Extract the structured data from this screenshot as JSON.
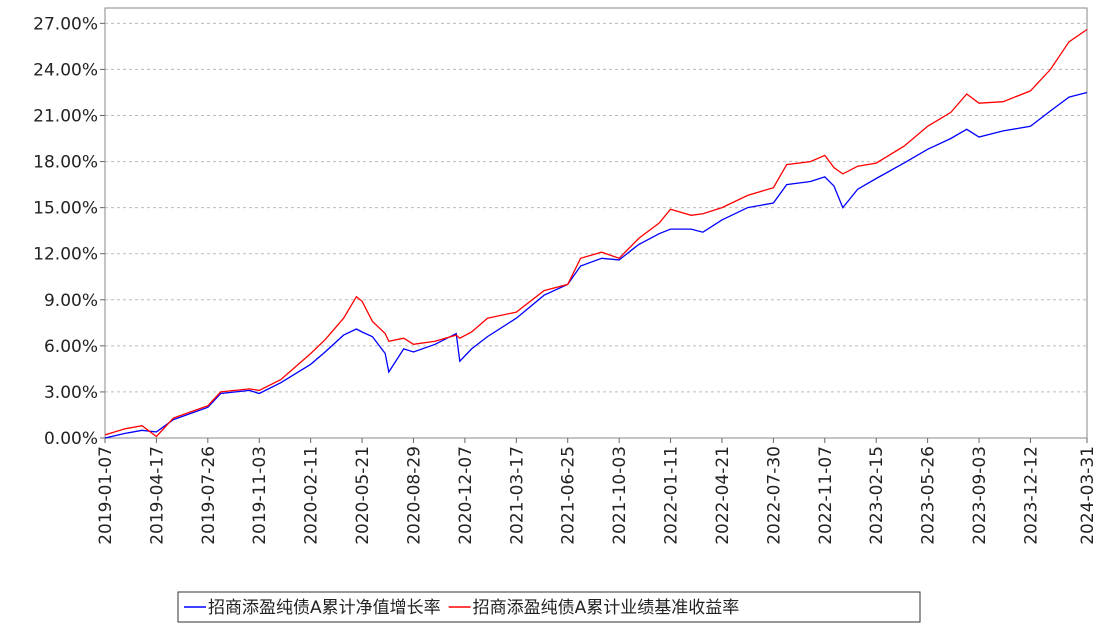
{
  "chart_data": {
    "type": "line",
    "x": [
      "2019-01-07",
      "2019-02-15",
      "2019-03-20",
      "2019-04-17",
      "2019-05-20",
      "2019-07-26",
      "2019-08-20",
      "2019-10-15",
      "2019-11-03",
      "2019-12-15",
      "2020-02-11",
      "2020-03-10",
      "2020-04-15",
      "2020-05-10",
      "2020-05-21",
      "2020-06-10",
      "2020-07-05",
      "2020-07-12",
      "2020-08-10",
      "2020-08-29",
      "2020-10-10",
      "2020-11-20",
      "2020-11-27",
      "2020-12-20",
      "2021-01-20",
      "2021-03-17",
      "2021-05-10",
      "2021-06-25",
      "2021-07-20",
      "2021-08-30",
      "2021-10-03",
      "2021-11-10",
      "2021-12-20",
      "2022-01-11",
      "2022-02-20",
      "2022-03-15",
      "2022-04-21",
      "2022-06-10",
      "2022-07-30",
      "2022-08-25",
      "2022-10-10",
      "2022-11-07",
      "2022-11-25",
      "2022-12-12",
      "2023-01-10",
      "2023-02-15",
      "2023-04-10",
      "2023-05-26",
      "2023-07-10",
      "2023-08-10",
      "2023-09-03",
      "2023-10-20",
      "2023-12-12",
      "2024-01-20",
      "2024-02-25",
      "2024-03-31"
    ],
    "series": [
      {
        "name": "招商添盈纯债A累计净值增长率",
        "color": "#0000ff",
        "values": [
          0.0,
          0.3,
          0.5,
          0.4,
          1.2,
          2.0,
          2.9,
          3.1,
          2.9,
          3.6,
          4.8,
          5.6,
          6.7,
          7.1,
          6.9,
          6.6,
          5.5,
          4.3,
          5.8,
          5.6,
          6.1,
          6.8,
          5.0,
          5.8,
          6.6,
          7.8,
          9.3,
          10.0,
          11.2,
          11.7,
          11.6,
          12.6,
          13.3,
          13.6,
          13.6,
          13.4,
          14.2,
          15.0,
          15.3,
          16.5,
          16.7,
          17.0,
          16.4,
          15.0,
          16.2,
          16.9,
          17.9,
          18.8,
          19.5,
          20.1,
          19.6,
          20.0,
          20.3,
          21.3,
          22.2,
          22.5
        ]
      },
      {
        "name": "招商添盈纯债A累计业绩基准收益率",
        "color": "#ff0000",
        "values": [
          0.2,
          0.6,
          0.8,
          0.1,
          1.3,
          2.1,
          3.0,
          3.2,
          3.1,
          3.8,
          5.5,
          6.4,
          7.8,
          9.2,
          8.9,
          7.6,
          6.8,
          6.3,
          6.5,
          6.1,
          6.3,
          6.7,
          6.5,
          6.9,
          7.8,
          8.2,
          9.6,
          10.0,
          11.7,
          12.1,
          11.7,
          13.0,
          14.0,
          14.9,
          14.5,
          14.6,
          15.0,
          15.8,
          16.3,
          17.8,
          18.0,
          18.4,
          17.6,
          17.2,
          17.7,
          17.9,
          19.0,
          20.3,
          21.2,
          22.4,
          21.8,
          21.9,
          22.6,
          24.0,
          25.8,
          26.6
        ]
      }
    ],
    "xlim": [
      "2019-01-07",
      "2024-03-31"
    ],
    "xticks": [
      "2019-01-07",
      "2019-04-17",
      "2019-07-26",
      "2019-11-03",
      "2020-02-11",
      "2020-05-21",
      "2020-08-29",
      "2020-12-07",
      "2021-03-17",
      "2021-06-25",
      "2021-10-03",
      "2022-01-11",
      "2022-04-21",
      "2022-07-30",
      "2022-11-07",
      "2023-02-15",
      "2023-05-26",
      "2023-09-03",
      "2023-12-12",
      "2024-03-31"
    ],
    "ylim": [
      0,
      28
    ],
    "yticks": [
      {
        "value": 0,
        "label": "0.00%"
      },
      {
        "value": 3,
        "label": "3.00%"
      },
      {
        "value": 6,
        "label": "6.00%"
      },
      {
        "value": 9,
        "label": "9.00%"
      },
      {
        "value": 12,
        "label": "12.00%"
      },
      {
        "value": 15,
        "label": "15.00%"
      },
      {
        "value": 18,
        "label": "18.00%"
      },
      {
        "value": 21,
        "label": "21.00%"
      },
      {
        "value": 24,
        "label": "24.00%"
      },
      {
        "value": 27,
        "label": "27.00%"
      }
    ],
    "grid": true
  }
}
